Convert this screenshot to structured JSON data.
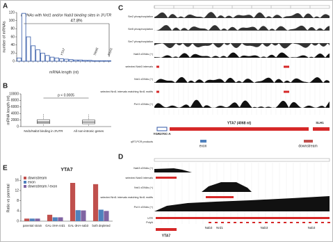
{
  "panel_labels": [
    "A",
    "B",
    "C",
    "D",
    "E"
  ],
  "chart_data": [
    {
      "type": "bar",
      "title": "mRNAs with Nrd1 and/or Nab3 binding sites in 3'UTR",
      "categories": [
        null,
        null,
        null,
        null,
        null,
        null,
        null,
        null,
        null,
        null,
        null,
        null,
        null,
        null,
        null,
        null,
        null,
        null,
        null,
        null
      ],
      "values": [
        8,
        118,
        60,
        38,
        28,
        20,
        14,
        10,
        8,
        6,
        5,
        4,
        3,
        3,
        2,
        2,
        1,
        1,
        1,
        1
      ],
      "color": "#2f56a6",
      "xlabel": "mRNA length (nt)",
      "ylabel": "number of mRNAs",
      "ylim": [
        0,
        120
      ],
      "yticks": [
        0,
        20,
        40,
        60,
        80,
        100,
        120
      ],
      "annotations": [
        "47.8%",
        "YTA7",
        "TRM1",
        "RSA1"
      ]
    },
    {
      "type": "box",
      "categories": [
        "Nrd1/Nab3 binding in 3'UTR",
        "All non-intronic genes"
      ],
      "stats": [
        {
          "whislo": 300,
          "q1": 900,
          "med": 1400,
          "q3": 2100,
          "whishi": 3900
        },
        {
          "whislo": 250,
          "q1": 850,
          "med": 1350,
          "q3": 2000,
          "whishi": 3700
        }
      ],
      "color": "#3a5fa8",
      "ylabel": "mRNA length (nt)",
      "ylim": [
        0,
        10000
      ],
      "yticks": [
        0,
        2000,
        4000,
        6000,
        8000,
        10000
      ],
      "annotations": [
        "p < 0.0005"
      ]
    },
    {
      "type": "grouped-bar",
      "title": "YTA7",
      "categories": [
        "parental strain",
        "GAL-3HA-nrd1",
        "GAL-3HA-nab3",
        "both depleted"
      ],
      "series": [
        {
          "name": "downstream",
          "color": "#c0504d",
          "values": [
            1,
            2.5,
            15,
            14.5
          ]
        },
        {
          "name": "exon",
          "color": "#4f81bd",
          "values": [
            1,
            1.5,
            4.3,
            4.5
          ]
        },
        {
          "name": "downstream / exon",
          "color": "#8064a2",
          "values": [
            1,
            1.5,
            4.2,
            4
          ]
        }
      ],
      "ylabel": "Ratio vs parental",
      "ylim": [
        0,
        18
      ],
      "yticks": [
        0,
        4,
        8,
        12,
        16
      ],
      "legend": "upper-left"
    }
  ],
  "genome_c": {
    "tracks": [
      "Ser2 phosphorylation",
      "Ser5 phosphorylation",
      "Ser7 phosphorylation",
      "Nab3 cDNAs (+)",
      "selected Nab3 intervals",
      "Nrd1 cDNAs (+)",
      "selected Nrd1 intervals matching Nrd1 motifs",
      "Pol II cDNAs (+)",
      "qRT-PCR products"
    ],
    "genes": [
      "YTA7 (4068 nt)",
      "YGR270C-A",
      "SLH1"
    ],
    "pcr": [
      "exon",
      "downstream"
    ]
  },
  "genome_d": {
    "tracks": [
      "Nab3 cDNAs (+)",
      "selected Nab3 intervals",
      "Nrd1 cDNAs (+)",
      "selected Nrd1 intervals matching Nrd1 motifs",
      "Pol II cDNAs (+)",
      "UTR",
      "PolyA"
    ],
    "genes": [
      "YTA7"
    ],
    "sites": [
      "Nab3",
      "Nrd1",
      "Nab3",
      "Nab3"
    ]
  }
}
